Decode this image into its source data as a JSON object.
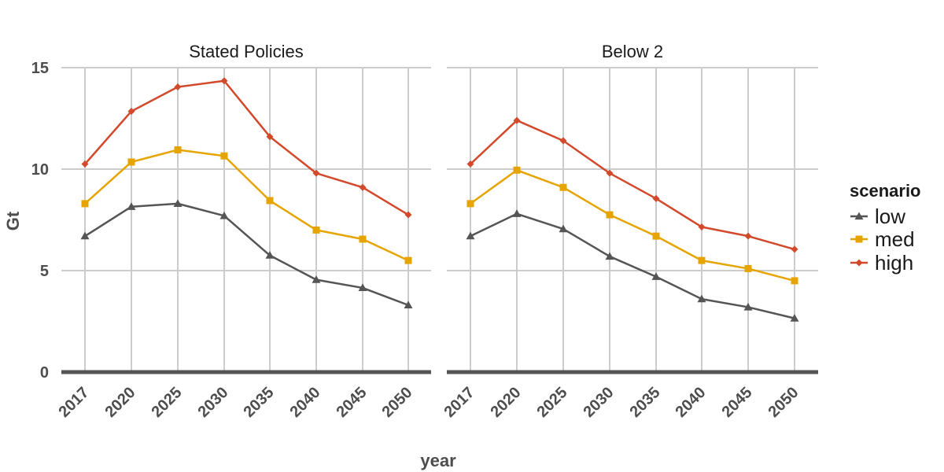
{
  "chart_data": {
    "type": "line",
    "facets": [
      "Stated Policies",
      "Below 2"
    ],
    "x": [
      "2017",
      "2020",
      "2025",
      "2030",
      "2035",
      "2040",
      "2045",
      "2050"
    ],
    "xlabel": "year",
    "ylabel": "Gt",
    "ylim": [
      0,
      15
    ],
    "yticks": [
      "0",
      "5",
      "10",
      "15"
    ],
    "legend": {
      "title": "scenario",
      "position": "right"
    },
    "series": [
      {
        "name": "low",
        "color": "#555555",
        "marker": "triangle",
        "values": {
          "Stated Policies": [
            6.7,
            8.15,
            8.3,
            7.7,
            5.75,
            4.55,
            4.15,
            3.3
          ],
          "Below 2": [
            6.7,
            7.8,
            7.05,
            5.7,
            4.7,
            3.6,
            3.2,
            2.65
          ]
        }
      },
      {
        "name": "med",
        "color": "#E6A400",
        "marker": "square",
        "values": {
          "Stated Policies": [
            8.3,
            10.35,
            10.95,
            10.65,
            8.45,
            7.0,
            6.55,
            5.5
          ],
          "Below 2": [
            8.3,
            9.95,
            9.1,
            7.75,
            6.7,
            5.5,
            5.1,
            4.5
          ]
        }
      },
      {
        "name": "high",
        "color": "#D2492B",
        "marker": "diamond",
        "values": {
          "Stated Policies": [
            10.25,
            12.85,
            14.05,
            14.35,
            11.6,
            9.8,
            9.1,
            7.75
          ],
          "Below 2": [
            10.25,
            12.4,
            11.4,
            9.8,
            8.55,
            7.15,
            6.7,
            6.05
          ]
        }
      }
    ]
  }
}
